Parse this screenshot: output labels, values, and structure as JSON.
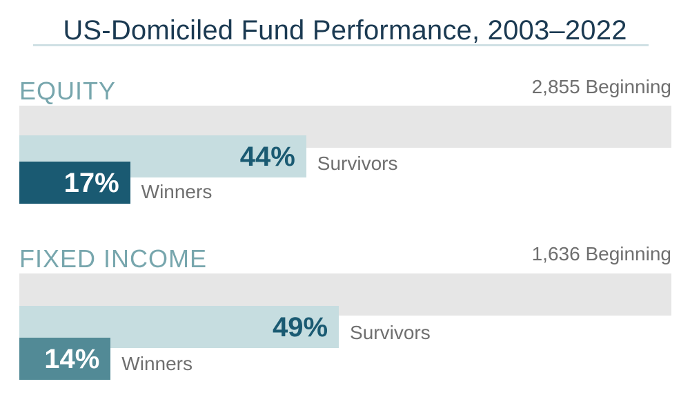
{
  "title": "US-Domiciled Fund Performance, 2003–2022",
  "colors": {
    "title": "#1b3a52",
    "section_title": "#77a6ad",
    "total_bar": "#e6e6e6",
    "survivors_bar": "#c6dde0",
    "winners_bar_equity": "#1a5a72",
    "winners_bar_fixed_income": "#528a96",
    "label_gray": "#6f6f6f"
  },
  "chart_data": [
    {
      "type": "bar",
      "title": "EQUITY",
      "beginning_label": "2,855 Beginning",
      "beginning_count": 2855,
      "categories": [
        "Beginning",
        "Survivors",
        "Winners"
      ],
      "values": [
        100,
        44,
        17
      ],
      "labels": {
        "survivors": "Survivors",
        "winners": "Winners"
      },
      "value_labels": {
        "survivors": "44%",
        "winners": "17%"
      }
    },
    {
      "type": "bar",
      "title": "FIXED INCOME",
      "beginning_label": "1,636 Beginning",
      "beginning_count": 1636,
      "categories": [
        "Beginning",
        "Survivors",
        "Winners"
      ],
      "values": [
        100,
        49,
        14
      ],
      "labels": {
        "survivors": "Survivors",
        "winners": "Winners"
      },
      "value_labels": {
        "survivors": "49%",
        "winners": "14%"
      }
    }
  ]
}
